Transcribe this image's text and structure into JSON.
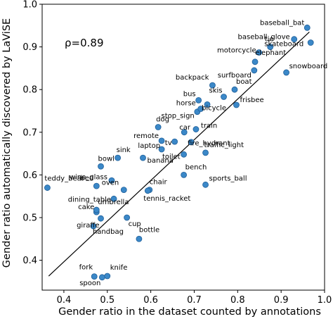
{
  "chart_data": {
    "type": "scatter",
    "xlabel": "Gender ratio in the dataset counted by annotations",
    "ylabel": "Gender ratio automatically discovered by LaViSE",
    "xlim": [
      0.35,
      1.0
    ],
    "ylim": [
      0.33,
      1.0
    ],
    "xticks": [
      0.4,
      0.5,
      0.6,
      0.7,
      0.8,
      0.9,
      1.0
    ],
    "yticks": [
      0.4,
      0.5,
      0.6,
      0.7,
      0.8,
      0.9,
      1.0
    ],
    "xtick_labels": [
      "0.4",
      "0.5",
      "0.6",
      "0.7",
      "0.8",
      "0.9",
      "1.0"
    ],
    "ytick_labels": [
      "0.4",
      "0.5",
      "0.6",
      "0.7",
      "0.8",
      "0.9",
      "1.0"
    ],
    "annotation": "ρ=0.89",
    "grid": false,
    "marker_color": "#3b88c8",
    "marker_edge": "#1f5f99",
    "fit_line": {
      "x": [
        0.365,
        0.965
      ],
      "y": [
        0.363,
        0.935
      ]
    },
    "points": [
      {
        "label": "teddy_bear",
        "x": 0.362,
        "y": 0.57
      },
      {
        "label": "fork",
        "x": 0.47,
        "y": 0.362
      },
      {
        "label": "spoon",
        "x": 0.488,
        "y": 0.36
      },
      {
        "label": "knife",
        "x": 0.5,
        "y": 0.363
      },
      {
        "label": "handbag",
        "x": 0.468,
        "y": 0.48
      },
      {
        "label": "giraffe",
        "x": 0.485,
        "y": 0.498
      },
      {
        "label": "cake",
        "x": 0.475,
        "y": 0.513
      },
      {
        "label": "umbrella",
        "x": 0.475,
        "y": 0.518
      },
      {
        "label": "dining_table",
        "x": 0.515,
        "y": 0.544
      },
      {
        "label": "bed",
        "x": 0.475,
        "y": 0.574
      },
      {
        "label": "wine_glass",
        "x": 0.51,
        "y": 0.587
      },
      {
        "label": "bowl",
        "x": 0.485,
        "y": 0.62
      },
      {
        "label": "sink",
        "x": 0.524,
        "y": 0.64
      },
      {
        "label": "oven",
        "x": 0.538,
        "y": 0.565
      },
      {
        "label": "cup",
        "x": 0.545,
        "y": 0.5
      },
      {
        "label": "bottle",
        "x": 0.573,
        "y": 0.45
      },
      {
        "label": "chair",
        "x": 0.597,
        "y": 0.565
      },
      {
        "label": "tennis_racket",
        "x": 0.593,
        "y": 0.563
      },
      {
        "label": "banana",
        "x": 0.582,
        "y": 0.64
      },
      {
        "label": "laptop",
        "x": 0.625,
        "y": 0.66
      },
      {
        "label": "remote",
        "x": 0.625,
        "y": 0.68
      },
      {
        "label": "dog",
        "x": 0.617,
        "y": 0.712
      },
      {
        "label": "tv",
        "x": 0.655,
        "y": 0.678
      },
      {
        "label": "toilet",
        "x": 0.676,
        "y": 0.648
      },
      {
        "label": "car",
        "x": 0.677,
        "y": 0.7
      },
      {
        "label": "fire_hydrant",
        "x": 0.693,
        "y": 0.677
      },
      {
        "label": "train",
        "x": 0.704,
        "y": 0.707
      },
      {
        "label": "traffic_light",
        "x": 0.726,
        "y": 0.652
      },
      {
        "label": "stop_sign",
        "x": 0.707,
        "y": 0.748
      },
      {
        "label": "horse",
        "x": 0.715,
        "y": 0.755
      },
      {
        "label": "bus",
        "x": 0.71,
        "y": 0.775
      },
      {
        "label": "bicycle",
        "x": 0.73,
        "y": 0.765
      },
      {
        "label": "backpack",
        "x": 0.742,
        "y": 0.81
      },
      {
        "label": "skis",
        "x": 0.768,
        "y": 0.783
      },
      {
        "label": "boat",
        "x": 0.793,
        "y": 0.8
      },
      {
        "label": "frisbee",
        "x": 0.797,
        "y": 0.764
      },
      {
        "label": "bench",
        "x": 0.676,
        "y": 0.6
      },
      {
        "label": "sports_ball",
        "x": 0.726,
        "y": 0.577
      },
      {
        "label": "surfboard",
        "x": 0.838,
        "y": 0.845
      },
      {
        "label": "snowboard",
        "x": 0.912,
        "y": 0.84
      },
      {
        "label": "elephant",
        "x": 0.84,
        "y": 0.865
      },
      {
        "label": "motorcycle",
        "x": 0.849,
        "y": 0.887
      },
      {
        "label": "tie",
        "x": 0.875,
        "y": 0.9
      },
      {
        "label": "skateboard",
        "x": 0.968,
        "y": 0.91
      },
      {
        "label": "baseball_glove",
        "x": 0.93,
        "y": 0.918
      },
      {
        "label": "baseball_bat",
        "x": 0.96,
        "y": 0.945
      }
    ]
  }
}
